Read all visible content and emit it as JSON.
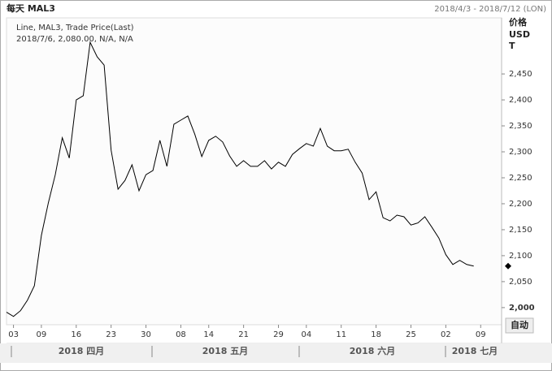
{
  "chart_data": {
    "type": "line",
    "title": "每天 MAL3",
    "subtitle": "2018/4/3 - 2018/7/12 (LON)",
    "axis_header": [
      "价格",
      "USD",
      "T"
    ],
    "legend_title": "Line, MAL3, Trade Price(Last)",
    "legend_detail": "2018/7/6, 2,080.00, N/A, N/A",
    "button": "自动",
    "months": [
      "2018 四月",
      "2018 五月",
      "2018 六月",
      "2018 七月"
    ],
    "color": "#000000",
    "x": [
      -1,
      0,
      1,
      2,
      3,
      4,
      5,
      6,
      7,
      8,
      9,
      10,
      11,
      12,
      13,
      14,
      15,
      16,
      17,
      18,
      19,
      20,
      21,
      22,
      23,
      24,
      25,
      26,
      27,
      28,
      29,
      30,
      31,
      32,
      33,
      34,
      35,
      36,
      37,
      38,
      39,
      40,
      41,
      42,
      43,
      44,
      45,
      46,
      47,
      48,
      49,
      50,
      51,
      52,
      53,
      54,
      55,
      56,
      57,
      58,
      59,
      60,
      61,
      62,
      63,
      64,
      65,
      66
    ],
    "values": [
      1991,
      1983,
      1994,
      2014,
      2042,
      2139,
      2202,
      2256,
      2327,
      2288,
      2400,
      2408,
      2511,
      2483,
      2467,
      2303,
      2228,
      2245,
      2275,
      2225,
      2256,
      2264,
      2322,
      2272,
      2353,
      2361,
      2369,
      2334,
      2291,
      2322,
      2330,
      2319,
      2292,
      2272,
      2283,
      2272,
      2272,
      2283,
      2267,
      2280,
      2272,
      2295,
      2306,
      2316,
      2311,
      2345,
      2311,
      2302,
      2302,
      2305,
      2280,
      2259,
      2208,
      2223,
      2173,
      2167,
      2178,
      2175,
      2159,
      2163,
      2175,
      2155,
      2134,
      2102,
      2083,
      2091,
      2083,
      2080
    ],
    "xlim": [
      -1,
      70
    ],
    "xticks": [
      {
        "value": 0,
        "label": "03"
      },
      {
        "value": 4,
        "label": "09"
      },
      {
        "value": 9,
        "label": "16"
      },
      {
        "value": 14,
        "label": "23"
      },
      {
        "value": 19,
        "label": "30"
      },
      {
        "value": 24,
        "label": "08"
      },
      {
        "value": 28,
        "label": "14"
      },
      {
        "value": 33,
        "label": "21"
      },
      {
        "value": 38,
        "label": "29"
      },
      {
        "value": 42,
        "label": "04"
      },
      {
        "value": 47,
        "label": "11"
      },
      {
        "value": 52,
        "label": "18"
      },
      {
        "value": 57,
        "label": "25"
      },
      {
        "value": 62,
        "label": "02"
      },
      {
        "value": 67,
        "label": "09"
      }
    ],
    "ylim": [
      1967,
      2558
    ],
    "yticks": [
      {
        "value": 2000,
        "label": "2,000"
      },
      {
        "value": 2050,
        "label": "2,050"
      },
      {
        "value": 2100,
        "label": "2,100"
      },
      {
        "value": 2150,
        "label": "2,150"
      },
      {
        "value": 2200,
        "label": "2,200"
      },
      {
        "value": 2250,
        "label": "2,250"
      },
      {
        "value": 2300,
        "label": "2,300"
      },
      {
        "value": 2350,
        "label": "2,350"
      },
      {
        "value": 2400,
        "label": "2,400"
      },
      {
        "value": 2450,
        "label": "2,450"
      }
    ],
    "grid": false
  }
}
